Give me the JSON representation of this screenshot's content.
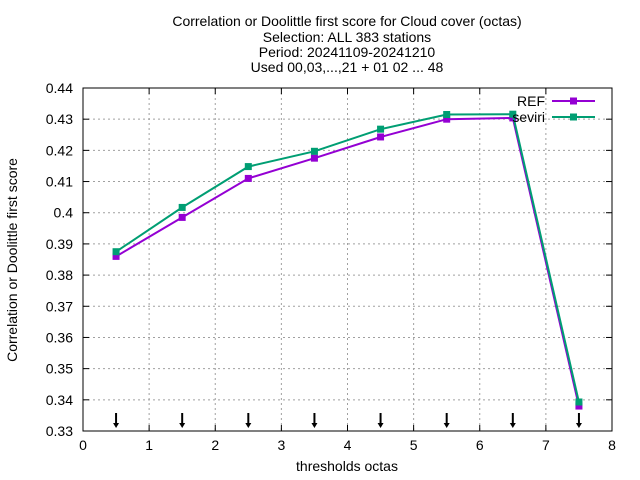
{
  "chart_data": {
    "type": "line",
    "title_lines": [
      "Correlation or Doolittle first score  for Cloud cover (octas)",
      "Selection: ALL    383 stations",
      "Period: 20241109-20241210",
      "Used 00,03,...,21 + 01 02 ... 48"
    ],
    "xlabel": "thresholds octas",
    "ylabel": "Correlation or Doolittle first score",
    "xlim": [
      0,
      8
    ],
    "ylim": [
      0.33,
      0.44
    ],
    "xticks": [
      "0",
      "1",
      "2",
      "3",
      "4",
      "5",
      "6",
      "7",
      "8"
    ],
    "yticks": [
      "0.33",
      "0.34",
      "0.35",
      "0.36",
      "0.37",
      "0.38",
      "0.39",
      "0.4",
      "0.41",
      "0.42",
      "0.43",
      "0.44"
    ],
    "grid": true,
    "legend_position": "top-right",
    "x": [
      0.5,
      1.5,
      2.5,
      3.5,
      4.5,
      5.5,
      6.5,
      7.5
    ],
    "series": [
      {
        "name": "REF",
        "color": "#9400d3",
        "values": [
          0.386,
          0.3985,
          0.411,
          0.4175,
          0.4243,
          0.43,
          0.4304,
          0.338
        ]
      },
      {
        "name": "seviri",
        "color": "#009e73",
        "values": [
          0.3875,
          0.4017,
          0.4148,
          0.4197,
          0.4268,
          0.4315,
          0.4316,
          0.3393
        ]
      }
    ],
    "sample_markers_x": [
      0.5,
      1.5,
      2.5,
      3.5,
      4.5,
      5.5,
      6.5,
      7.5
    ]
  }
}
